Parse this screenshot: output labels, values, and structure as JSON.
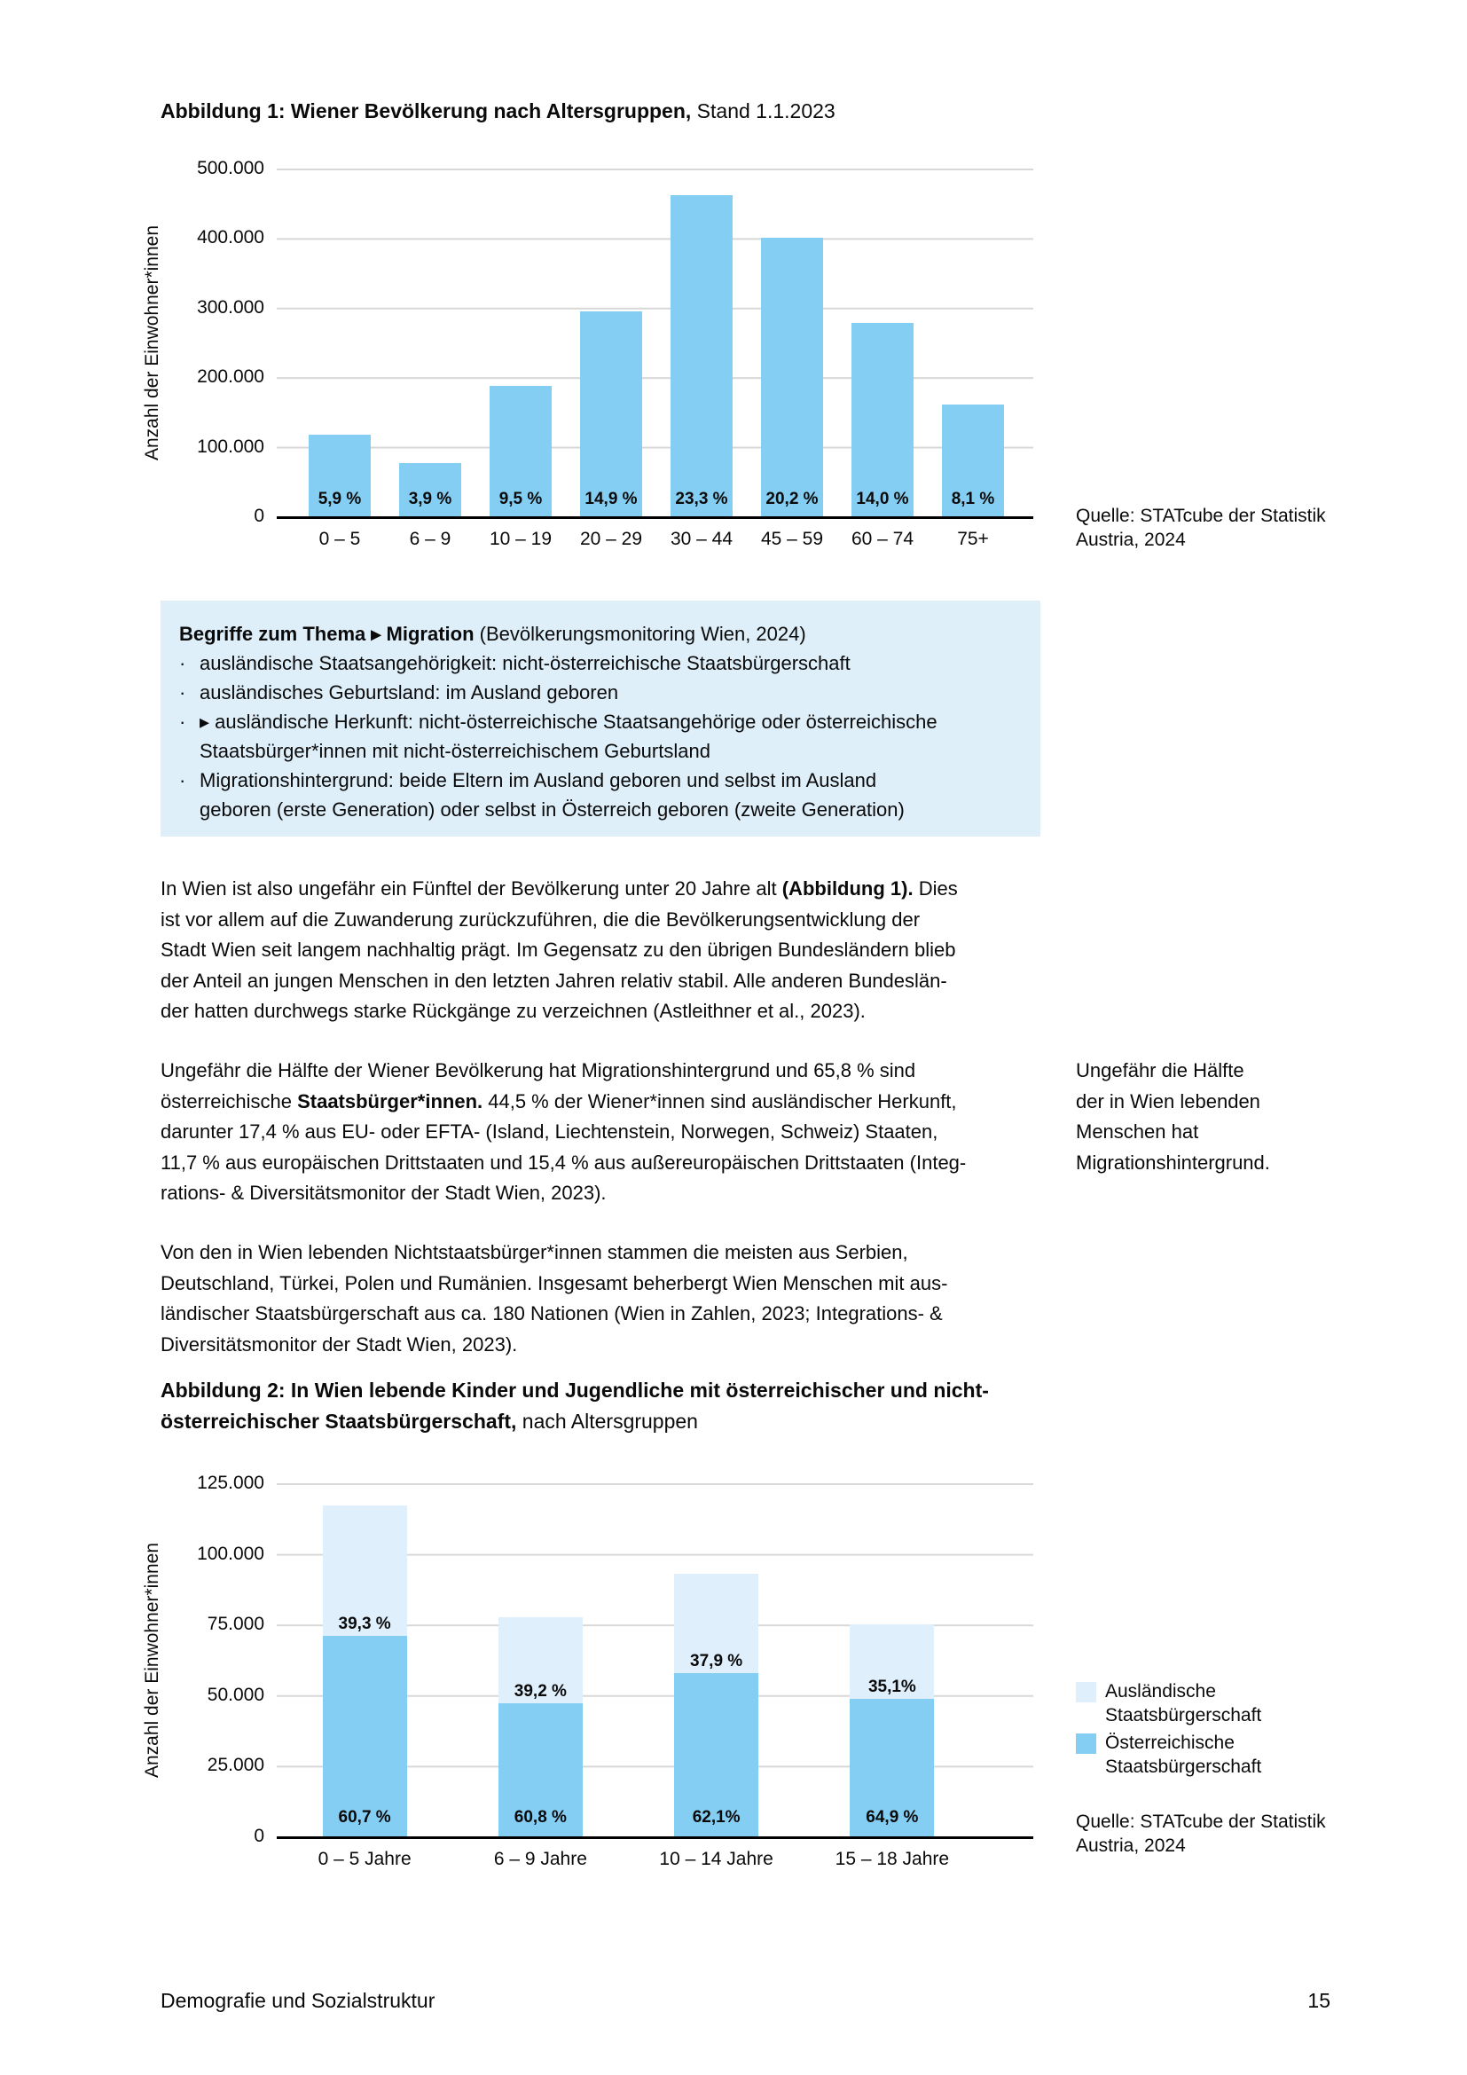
{
  "fig1": {
    "title_bold": "Abbildung 1: Wiener Bevölkerung nach Altersgruppen,",
    "title_rest": " Stand 1.1.2023",
    "source_line1": "Quelle: STATcube der Statistik",
    "source_line2": "Austria, 2024"
  },
  "fig2": {
    "title_bold_l1": "Abbildung 2: In Wien lebende Kinder und Jugendliche mit österreichischer und nicht-",
    "title_bold_l2": "österreichischer Staatsbürgerschaft,",
    "title_rest": " nach Altersgruppen",
    "source_line1": "Quelle: STATcube der Statistik",
    "source_line2": "Austria, 2024"
  },
  "chart_data": [
    {
      "type": "bar",
      "title": "Abbildung 1: Wiener Bevölkerung nach Altersgruppen, Stand 1.1.2023",
      "ylabel": "Anzahl der Einwohner*innen",
      "xlabel": "",
      "ylim": [
        0,
        500000
      ],
      "grid": true,
      "yticks": [
        "500.000",
        "400.000",
        "300.000",
        "200.000",
        "100.000",
        "0"
      ],
      "categories": [
        "0 – 5",
        "6 – 9",
        "10 – 19",
        "20 – 29",
        "30 – 44",
        "45 – 59",
        "60 – 74",
        "75+"
      ],
      "values": [
        117000,
        77000,
        188000,
        295000,
        462000,
        400000,
        278000,
        161000
      ],
      "bar_labels": [
        "5,9 %",
        "3,9 %",
        "9,5 %",
        "14,9 %",
        "23,3 %",
        "20,2 %",
        "14,0 %",
        "8,1 %"
      ],
      "bar_color": "#84cef3",
      "source": "Quelle: STATcube der Statistik Austria, 2024"
    },
    {
      "type": "bar",
      "stacked": true,
      "title": "Abbildung 2: In Wien lebende Kinder und Jugendliche mit österreichischer und nicht-österreichischer Staatsbürgerschaft, nach Altersgruppen",
      "ylabel": "Anzahl der Einwohner*innen",
      "xlabel": "",
      "ylim": [
        0,
        125000
      ],
      "grid": true,
      "legend_position": "right",
      "yticks": [
        "125.000",
        "100.000",
        "75.000",
        "50.000",
        "25.000",
        "0"
      ],
      "categories": [
        "0 – 5 Jahre",
        "6 – 9 Jahre",
        "10 – 14 Jahre",
        "15 – 18 Jahre"
      ],
      "totals": [
        117000,
        77500,
        93000,
        75000
      ],
      "series": [
        {
          "name": "Ausländische Staatsbürgerschaft",
          "color": "#dfeffb",
          "values": [
            46000,
            30400,
            35200,
            26300
          ],
          "labels": [
            "39,3 %",
            "39,2 %",
            "37,9 %",
            "35,1%"
          ]
        },
        {
          "name": "Österreichische Staatsbürgerschaft",
          "color": "#84cef3",
          "values": [
            71000,
            47100,
            57800,
            48700
          ],
          "labels": [
            "60,7 %",
            "60,8 %",
            "62,1%",
            "64,9 %"
          ]
        }
      ],
      "source": "Quelle: STATcube der Statistik Austria, 2024"
    }
  ],
  "infobox": {
    "title_bold": "Begriffe zum Thema ▸ Migration",
    "title_rest": " (Bevölkerungsmonitoring Wien, 2024)",
    "bullet_glyph": "·",
    "items": [
      {
        "lines": [
          "ausländische Staatsangehörigkeit: nicht-österreichische Staatsbürgerschaft"
        ]
      },
      {
        "lines": [
          "ausländisches Geburtsland: im Ausland geboren"
        ]
      },
      {
        "lines": [
          "▸ ausländische Herkunft: nicht-österreichische Staatsangehörige oder österreichische",
          "Staatsbürger*innen mit nicht-österreichischem Geburtsland"
        ]
      },
      {
        "lines": [
          "Migrationshintergrund: beide Eltern im Ausland geboren und selbst im Ausland",
          "geboren (erste Generation) oder selbst in Österreich geboren (zweite Generation)"
        ]
      }
    ]
  },
  "main": {
    "p1": {
      "l1a": "In Wien ist also ungefähr ein Fünftel der Bevölkerung unter 20 Jahre alt ",
      "l1b": "(Abbildung 1).",
      "l1c": " Dies",
      "l2": "ist vor allem auf die Zuwanderung zurückzuführen, die die Bevölkerungsentwicklung der",
      "l3": "Stadt Wien seit langem nachhaltig prägt. Im Gegensatz zu den übrigen Bundesländern blieb",
      "l4": "der Anteil an jungen Menschen in den letzten Jahren relativ stabil. Alle anderen Bundeslän-",
      "l5": "der hatten durchwegs starke Rückgänge zu verzeichnen (Astleithner et al., 2023)."
    },
    "p2": {
      "l1": "Ungefähr die Hälfte der Wiener Bevölkerung hat Migrationshintergrund und 65,8 % sind",
      "l2a": "österreichische ",
      "l2b": "Staatsbürger*innen.",
      "l2c": " 44,5 % der Wiener*innen sind ausländischer Herkunft,",
      "l3": "darunter 17,4 % aus EU- oder EFTA- (Island, Liechtenstein, Norwegen, Schweiz) Staaten,",
      "l4": "11,7 % aus europäischen Drittstaaten und 15,4 % aus außereuropäischen Drittstaaten (Integ-",
      "l5": "rations- & Diversitätsmonitor der Stadt Wien, 2023)."
    },
    "p3": {
      "l1": "Von den in Wien lebenden Nichtstaatsbürger*innen stammen die meisten aus Serbien,",
      "l2": "Deutschland, Türkei, Polen und Rumänien. Insgesamt beherbergt Wien Menschen mit aus-",
      "l3": "ländischer Staatsbürgerschaft aus ca. 180 Nationen (Wien in Zahlen, 2023; Integrations- &",
      "l4": "Diversitätsmonitor der Stadt Wien, 2023)."
    },
    "margin_note": {
      "l1": "Ungefähr die Hälfte",
      "l2": "der in Wien lebenden",
      "l3": "Menschen hat",
      "l4": "Migrationshintergrund."
    }
  },
  "footer": {
    "section": "Demografie und Sozialstruktur",
    "page_number": "15"
  }
}
